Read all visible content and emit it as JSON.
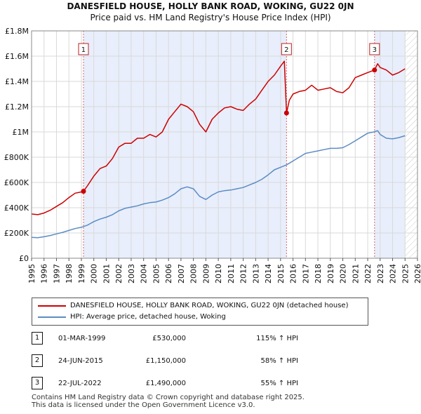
{
  "title_line1": "DANESFIELD HOUSE, HOLLY BANK ROAD, WOKING, GU22 0JN",
  "title_line2": "Price paid vs. HM Land Registry's House Price Index (HPI)",
  "colors": {
    "property": "#cc0000",
    "hpi": "#5b8cc4",
    "shade": "#e8eefb",
    "marker": "#cc0000"
  },
  "legend": {
    "property_label": "DANESFIELD HOUSE, HOLLY BANK ROAD, WOKING, GU22 0JN (detached house)",
    "hpi_label": "HPI: Average price, detached house, Woking"
  },
  "transactions": [
    {
      "id": "1",
      "date": "01-MAR-1999",
      "price": "£530,000",
      "hpi": "115% ↑ HPI"
    },
    {
      "id": "2",
      "date": "24-JUN-2015",
      "price": "£1,150,000",
      "hpi": "58% ↑ HPI"
    },
    {
      "id": "3",
      "date": "22-JUL-2022",
      "price": "£1,490,000",
      "hpi": "55% ↑ HPI"
    }
  ],
  "footer": {
    "line1": "Contains HM Land Registry data © Crown copyright and database right 2025.",
    "line2": "This data is licensed under the Open Government Licence v3.0."
  },
  "chart_data": {
    "type": "line",
    "title": "DANESFIELD HOUSE, HOLLY BANK ROAD, WOKING, GU22 0JN",
    "subtitle": "Price paid vs. HM Land Registry's House Price Index (HPI)",
    "xlabel": "",
    "ylabel": "",
    "xlim": [
      1995,
      2026
    ],
    "ylim": [
      0,
      1800000
    ],
    "grid": true,
    "legend_position": "below",
    "y_ticks": [
      {
        "value": 0,
        "label": "£0"
      },
      {
        "value": 200000,
        "label": "£200K"
      },
      {
        "value": 400000,
        "label": "£400K"
      },
      {
        "value": 600000,
        "label": "£600K"
      },
      {
        "value": 800000,
        "label": "£800K"
      },
      {
        "value": 1000000,
        "label": "£1M"
      },
      {
        "value": 1200000,
        "label": "£1.2M"
      },
      {
        "value": 1400000,
        "label": "£1.4M"
      },
      {
        "value": 1600000,
        "label": "£1.6M"
      },
      {
        "value": 1800000,
        "label": "£1.8M"
      }
    ],
    "x_ticks": [
      "1995",
      "1996",
      "1997",
      "1998",
      "1999",
      "2000",
      "2001",
      "2002",
      "2003",
      "2004",
      "2005",
      "2006",
      "2007",
      "2008",
      "2009",
      "2010",
      "2011",
      "2012",
      "2013",
      "2014",
      "2015",
      "2016",
      "2017",
      "2018",
      "2019",
      "2020",
      "2021",
      "2022",
      "2023",
      "2024",
      "2025",
      "2026"
    ],
    "shaded_ranges": [
      [
        1999.17,
        2015.48
      ],
      [
        2022.55,
        2025.0
      ]
    ],
    "hatched_after": 2025.0,
    "series": [
      {
        "name": "DANESFIELD HOUSE, HOLLY BANK ROAD, WOKING, GU22 0JN (detached house)",
        "color": "#cc0000",
        "x": [
          1995.0,
          1995.5,
          1996.0,
          1996.5,
          1997.0,
          1997.5,
          1998.0,
          1998.5,
          1999.0,
          1999.17,
          1999.5,
          2000.0,
          2000.5,
          2001.0,
          2001.5,
          2002.0,
          2002.5,
          2003.0,
          2003.5,
          2004.0,
          2004.5,
          2005.0,
          2005.5,
          2006.0,
          2006.5,
          2007.0,
          2007.5,
          2008.0,
          2008.5,
          2009.0,
          2009.5,
          2010.0,
          2010.5,
          2011.0,
          2011.5,
          2012.0,
          2012.5,
          2013.0,
          2013.5,
          2014.0,
          2014.5,
          2015.0,
          2015.3,
          2015.48,
          2015.7,
          2016.0,
          2016.5,
          2017.0,
          2017.5,
          2018.0,
          2018.5,
          2019.0,
          2019.5,
          2020.0,
          2020.5,
          2021.0,
          2021.5,
          2022.0,
          2022.55,
          2022.8,
          2023.0,
          2023.5,
          2024.0,
          2024.5,
          2025.0
        ],
        "values": [
          350000,
          345000,
          358000,
          380000,
          410000,
          440000,
          480000,
          515000,
          525000,
          530000,
          575000,
          650000,
          710000,
          730000,
          790000,
          880000,
          910000,
          910000,
          950000,
          950000,
          980000,
          960000,
          1000000,
          1100000,
          1160000,
          1220000,
          1200000,
          1160000,
          1060000,
          1000000,
          1100000,
          1150000,
          1190000,
          1200000,
          1180000,
          1170000,
          1220000,
          1260000,
          1330000,
          1400000,
          1450000,
          1520000,
          1560000,
          1150000,
          1250000,
          1300000,
          1320000,
          1330000,
          1370000,
          1330000,
          1340000,
          1350000,
          1320000,
          1310000,
          1350000,
          1430000,
          1450000,
          1470000,
          1490000,
          1540000,
          1510000,
          1490000,
          1450000,
          1470000,
          1500000
        ]
      },
      {
        "name": "HPI: Average price, detached house, Woking",
        "color": "#5b8cc4",
        "x": [
          1995.0,
          1995.5,
          1996.0,
          1996.5,
          1997.0,
          1997.5,
          1998.0,
          1998.5,
          1999.0,
          1999.5,
          2000.0,
          2000.5,
          2001.0,
          2001.5,
          2002.0,
          2002.5,
          2003.0,
          2003.5,
          2004.0,
          2004.5,
          2005.0,
          2005.5,
          2006.0,
          2006.5,
          2007.0,
          2007.5,
          2008.0,
          2008.5,
          2009.0,
          2009.5,
          2010.0,
          2010.5,
          2011.0,
          2011.5,
          2012.0,
          2012.5,
          2013.0,
          2013.5,
          2014.0,
          2014.5,
          2015.0,
          2015.5,
          2016.0,
          2016.5,
          2017.0,
          2017.5,
          2018.0,
          2018.5,
          2019.0,
          2019.5,
          2020.0,
          2020.5,
          2021.0,
          2021.5,
          2022.0,
          2022.5,
          2022.8,
          2023.0,
          2023.5,
          2024.0,
          2024.5,
          2025.0
        ],
        "values": [
          165000,
          163000,
          170000,
          180000,
          193000,
          205000,
          220000,
          235000,
          245000,
          262000,
          290000,
          310000,
          325000,
          345000,
          375000,
          395000,
          405000,
          415000,
          430000,
          440000,
          445000,
          460000,
          480000,
          510000,
          550000,
          565000,
          550000,
          490000,
          465000,
          500000,
          525000,
          535000,
          540000,
          550000,
          560000,
          580000,
          600000,
          625000,
          660000,
          700000,
          720000,
          740000,
          770000,
          800000,
          830000,
          840000,
          850000,
          860000,
          870000,
          870000,
          875000,
          900000,
          930000,
          960000,
          990000,
          1000000,
          1010000,
          980000,
          950000,
          945000,
          955000,
          970000
        ]
      }
    ],
    "markers": [
      {
        "label": "1",
        "x": 1999.17,
        "y": 530000
      },
      {
        "label": "2",
        "x": 2015.48,
        "y": 1150000
      },
      {
        "label": "3",
        "x": 2022.55,
        "y": 1490000
      }
    ]
  }
}
